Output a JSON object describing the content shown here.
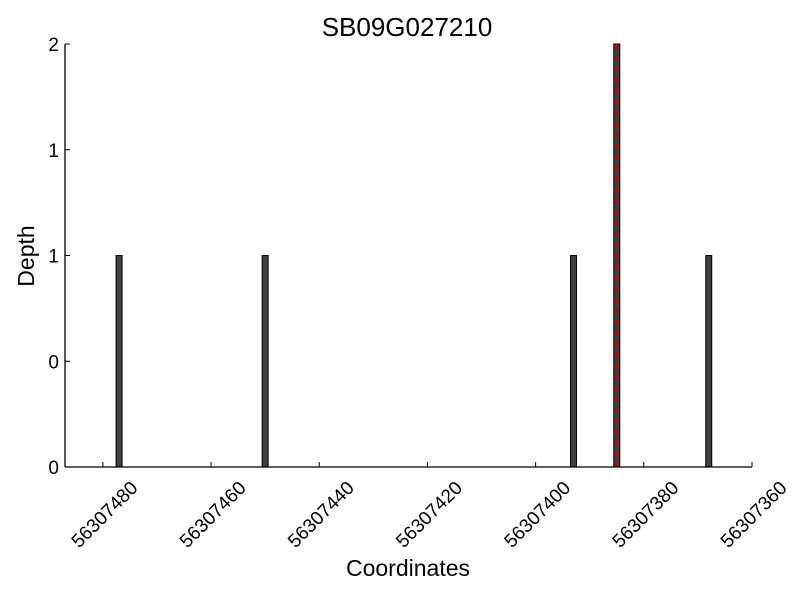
{
  "chart_data": {
    "type": "bar",
    "title": "SB09G027210",
    "xlabel": "Coordinates",
    "ylabel": "Depth",
    "x_axis": "reversed",
    "xlim": [
      56307487,
      56307360
    ],
    "ylim": [
      0,
      2
    ],
    "y_ticks": [
      {
        "value": 0,
        "label": "0"
      },
      {
        "value": 0.5,
        "label": "0"
      },
      {
        "value": 1,
        "label": "1"
      },
      {
        "value": 1.5,
        "label": "1"
      },
      {
        "value": 2,
        "label": "2"
      }
    ],
    "x_ticks": [
      {
        "value": 56307480,
        "label": "56307480"
      },
      {
        "value": 56307460,
        "label": "56307460"
      },
      {
        "value": 56307440,
        "label": "56307440"
      },
      {
        "value": 56307420,
        "label": "56307420"
      },
      {
        "value": 56307400,
        "label": "56307400"
      },
      {
        "value": 56307380,
        "label": "56307380"
      },
      {
        "value": 56307360,
        "label": "56307360"
      }
    ],
    "bars": [
      {
        "x": 56307477,
        "value": 1
      },
      {
        "x": 56307450,
        "value": 1
      },
      {
        "x": 56307393,
        "value": 1
      },
      {
        "x": 56307385,
        "value": 2
      },
      {
        "x": 56307368,
        "value": 1
      }
    ],
    "marker_line": {
      "x": 56307385,
      "style": "dashed",
      "color": "#cc0000"
    },
    "bar_color": "#404040",
    "grid": false,
    "legend": "none"
  }
}
